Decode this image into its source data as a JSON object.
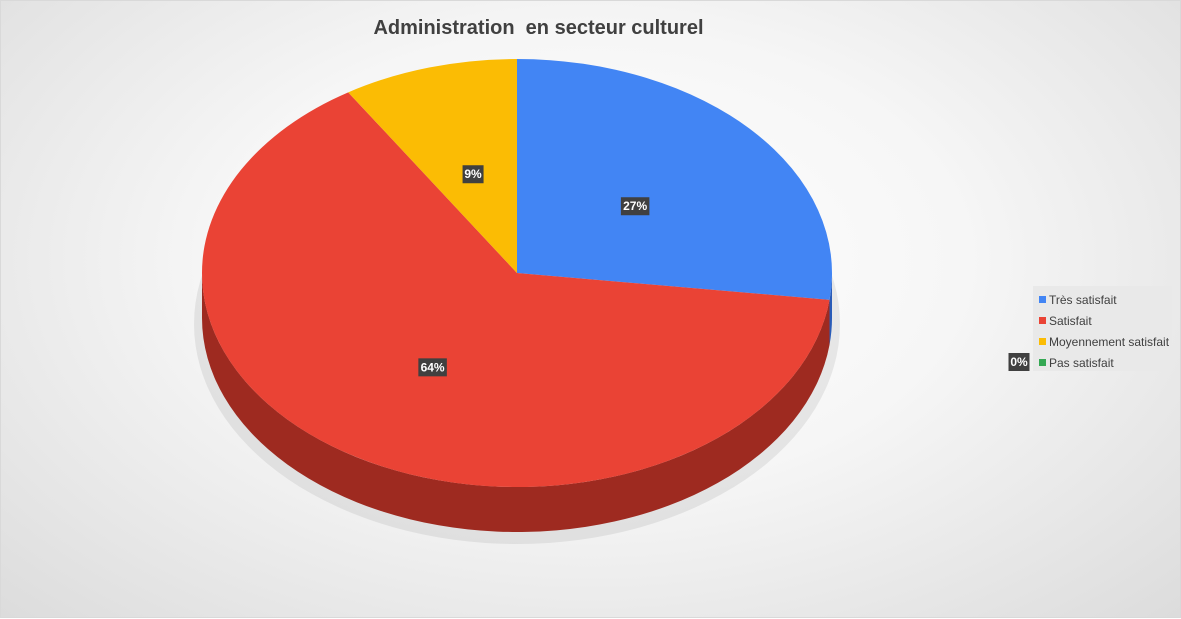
{
  "chart_data": {
    "type": "pie",
    "title": "Administration  en secteur culturel",
    "categories": [
      "Très satisfait",
      "Satisfait",
      "Moyennement satisfait",
      "Pas satisfait"
    ],
    "values": [
      27,
      64,
      9,
      0
    ],
    "data_labels": [
      "27%",
      "64%",
      "9%",
      "0%"
    ],
    "colors": [
      "#4285f4",
      "#ea4335",
      "#fbbc04",
      "#34a853"
    ],
    "side_colors": [
      "#2a5cb8",
      "#9e2a20",
      "#b08100",
      "#1e6b33"
    ],
    "legend_position": "right",
    "style": "3d"
  }
}
